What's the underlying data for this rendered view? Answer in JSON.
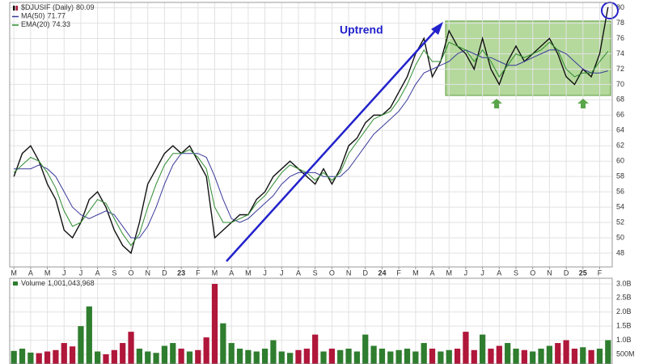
{
  "chart_data": [
    {
      "type": "line",
      "categories": [
        "M",
        null,
        "A",
        null,
        "M",
        null,
        "J",
        null,
        "J",
        null,
        "A",
        null,
        "S",
        null,
        "O",
        null,
        "N",
        null,
        "D",
        null,
        "23",
        null,
        "F",
        null,
        "M",
        null,
        "A",
        null,
        "M",
        null,
        "J",
        null,
        "J",
        null,
        "A",
        null,
        "S",
        null,
        "O",
        null,
        "N",
        null,
        "D",
        null,
        "24",
        null,
        "F",
        null,
        "M",
        null,
        "A",
        null,
        "M",
        null,
        "J",
        null,
        "J",
        null,
        "A",
        null,
        "S",
        null,
        "O",
        null,
        "N",
        null,
        "D",
        null,
        "25",
        null,
        "F",
        null
      ],
      "series": [
        {
          "name": "$DJUSIF (Daily)",
          "color": "#111111",
          "values": [
            58,
            61,
            62,
            60,
            57,
            55,
            51,
            50,
            52,
            55,
            56,
            54,
            51,
            49,
            48,
            52,
            57,
            59,
            61,
            62,
            61,
            62,
            60,
            58,
            50,
            51,
            52,
            53,
            53,
            55,
            56,
            58,
            59,
            60,
            59,
            58,
            57,
            59,
            57,
            59,
            62,
            63,
            65,
            66,
            66,
            67,
            69,
            71,
            74,
            76,
            71,
            73,
            77,
            75,
            74,
            72,
            76,
            72,
            70,
            73,
            75,
            73,
            74,
            75,
            76,
            74,
            71,
            70,
            72,
            71,
            74,
            80.09
          ]
        },
        {
          "name": "MA(50)",
          "color": "#3a3a9a",
          "values": [
            59,
            59,
            59,
            59.5,
            59,
            58,
            56,
            54,
            53,
            52.5,
            53,
            53.5,
            53,
            51.5,
            50,
            50,
            51.5,
            54,
            57,
            59.5,
            61,
            61,
            61,
            60.5,
            58,
            55,
            52.5,
            52,
            52.5,
            53.5,
            54.5,
            55.5,
            57,
            58,
            58.5,
            58.5,
            58.5,
            58,
            58,
            58,
            59,
            60.5,
            62,
            63.5,
            64.5,
            65.5,
            66.5,
            68,
            70,
            71.5,
            72,
            72.5,
            73,
            74,
            74.5,
            74,
            73.5,
            73.5,
            73,
            72.5,
            72.5,
            73,
            73.5,
            74,
            74.5,
            74.5,
            74,
            73,
            72,
            71.5,
            71.5,
            71.77
          ]
        },
        {
          "name": "EMA(20)",
          "color": "#2e8b2e",
          "values": [
            58.5,
            59.5,
            60.5,
            60,
            58.5,
            56.5,
            53.5,
            51.5,
            52,
            53.5,
            55,
            54.5,
            52.5,
            50.5,
            49,
            50.5,
            54,
            57,
            59.5,
            61,
            61,
            61.5,
            60.5,
            59,
            54,
            52,
            52,
            52.5,
            53,
            54.5,
            55.5,
            57,
            58.5,
            59.5,
            59,
            58.5,
            57.5,
            58.5,
            57.5,
            58.5,
            61,
            62.5,
            64,
            65.5,
            66,
            66.5,
            68,
            70,
            72.5,
            74.5,
            73,
            73,
            75.5,
            75,
            74.5,
            73,
            74.5,
            73,
            71,
            72.5,
            74,
            73.5,
            74,
            74.5,
            75.5,
            74.5,
            72,
            71,
            71.5,
            71.5,
            73,
            74.33
          ]
        }
      ],
      "ylim": [
        46.2,
        80.7
      ],
      "yticks": [
        48,
        50,
        52,
        54,
        56,
        58,
        60,
        62,
        64,
        66,
        68,
        70,
        72,
        74,
        76,
        78,
        80
      ],
      "grid": true,
      "legend": "upper left",
      "annotations": [
        "Uptrend"
      ]
    },
    {
      "type": "bar",
      "name": "Volume",
      "up_color": "#2f7d2f",
      "down_color": "#b0173a",
      "values": [
        620000000,
        700000000,
        560000000,
        540000000,
        600000000,
        650000000,
        900000000,
        780000000,
        1500000000,
        2200000000,
        600000000,
        500000000,
        650000000,
        900000000,
        1300000000,
        700000000,
        600000000,
        550000000,
        800000000,
        900000000,
        700000000,
        600000000,
        650000000,
        1100000000,
        3000000000,
        1600000000,
        900000000,
        700000000,
        650000000,
        600000000,
        700000000,
        1000000000,
        600000000,
        550000000,
        650000000,
        700000000,
        1200000000,
        600000000,
        700000000,
        650000000,
        700000000,
        600000000,
        1200000000,
        800000000,
        700000000,
        600000000,
        650000000,
        700000000,
        600000000,
        900000000,
        700000000,
        600000000,
        650000000,
        700000000,
        1300000000,
        650000000,
        1200000000,
        700000000,
        800000000,
        900000000,
        700000000,
        650000000,
        600000000,
        700000000,
        800000000,
        900000000,
        1000000000,
        700000000,
        750000000,
        650000000,
        700000000,
        1001043968
      ],
      "value_labels": [
        null,
        null,
        null,
        null,
        null,
        null,
        null,
        null,
        null,
        null,
        null,
        null,
        null,
        null,
        null,
        null,
        null,
        null,
        null,
        null,
        null,
        null,
        null,
        null,
        null,
        null,
        null,
        null,
        null,
        null,
        null,
        null,
        null,
        null,
        null,
        null,
        null,
        null,
        null,
        null,
        null,
        null,
        null,
        null,
        null,
        null,
        null,
        null,
        null,
        null,
        null,
        null,
        null,
        null,
        null,
        null,
        null,
        null,
        null,
        null,
        null,
        null,
        null,
        null,
        null,
        null,
        null,
        null,
        null,
        null,
        null,
        "1,001,043,968"
      ],
      "ylim": [
        155000000,
        3200000000
      ],
      "yticks": [
        {
          "value": 500000000,
          "label": "500M"
        },
        {
          "value": 1000000000,
          "label": "1.0B"
        },
        {
          "value": 1500000000,
          "label": "1.5B"
        },
        {
          "value": 2000000000,
          "label": "2.0B"
        },
        {
          "value": 2500000000,
          "label": "2.5B"
        },
        {
          "value": 3000000000,
          "label": "3.0B"
        }
      ]
    }
  ]
}
